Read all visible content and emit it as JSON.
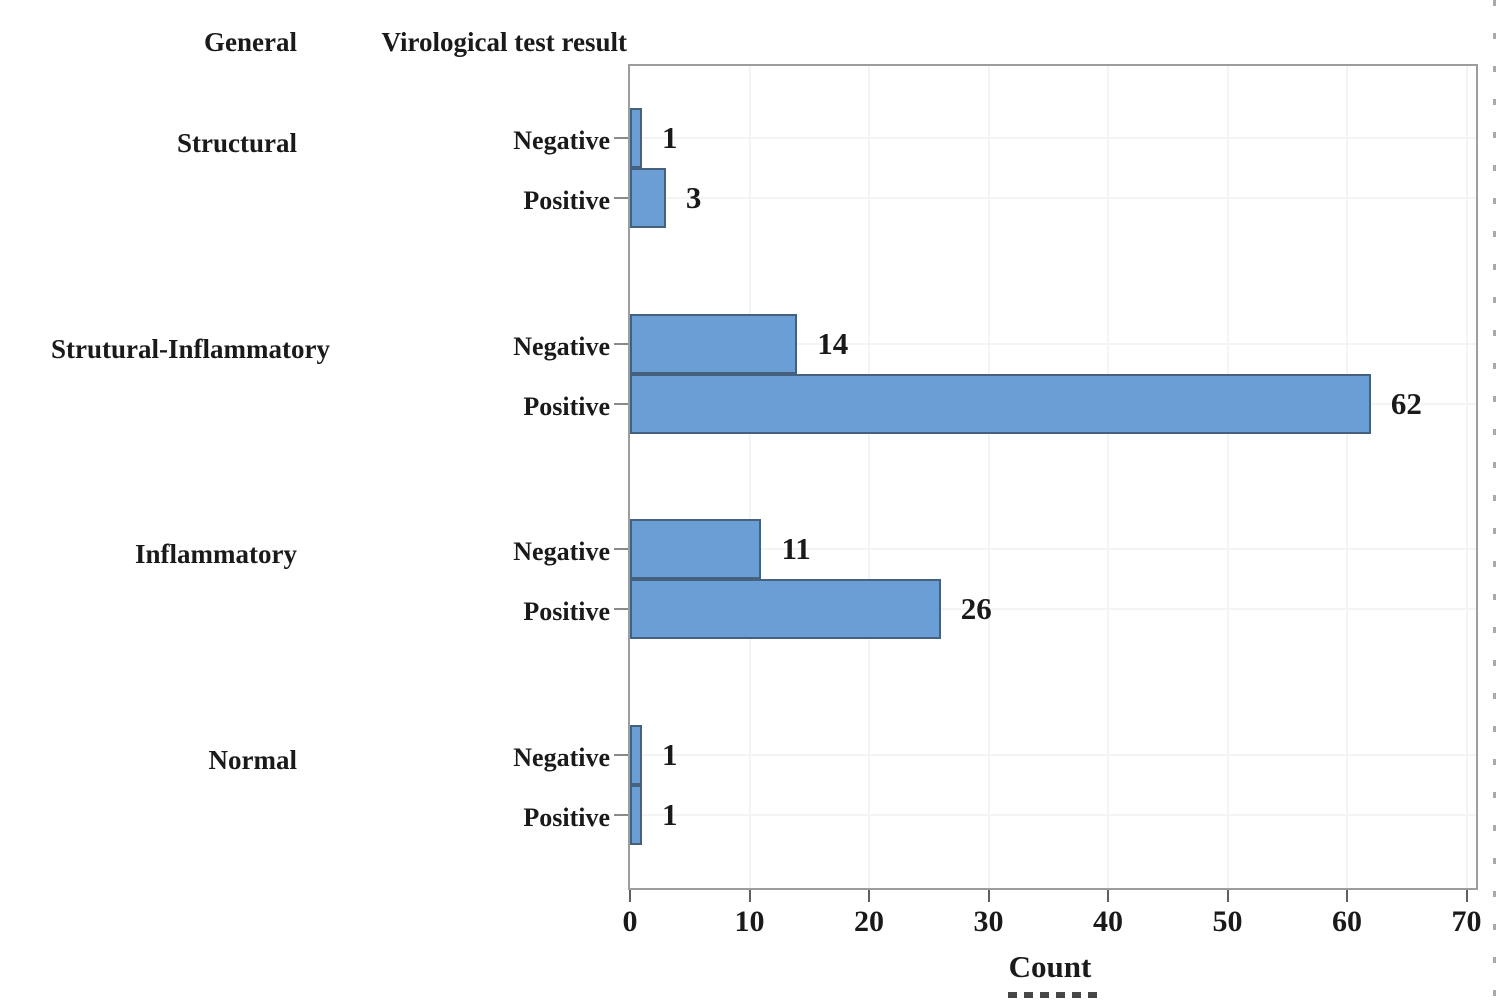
{
  "chart_data": {
    "type": "bar",
    "orientation": "horizontal",
    "col_headers": [
      "General",
      "Virological test result"
    ],
    "xlabel": "Count",
    "x_ticks": [
      0,
      10,
      20,
      30,
      40,
      50,
      60,
      70
    ],
    "xlim": [
      0,
      70.5
    ],
    "grid": true,
    "legend": "none",
    "bar_color": "#6B9ED4",
    "bar_border_color": "#44617E",
    "categories_per_group": [
      "Negative",
      "Positive"
    ],
    "groups": [
      {
        "label": "Structural",
        "bars": [
          {
            "category": "Negative",
            "value": 1
          },
          {
            "category": "Positive",
            "value": 3
          }
        ]
      },
      {
        "label": "Strutural-Inflammatory",
        "bars": [
          {
            "category": "Negative",
            "value": 14
          },
          {
            "category": "Positive",
            "value": 62
          }
        ]
      },
      {
        "label": "Inflammatory",
        "bars": [
          {
            "category": "Negative",
            "value": 11
          },
          {
            "category": "Positive",
            "value": 26
          }
        ]
      },
      {
        "label": "Normal",
        "bars": [
          {
            "category": "Negative",
            "value": 1
          },
          {
            "category": "Positive",
            "value": 1
          }
        ]
      }
    ]
  }
}
